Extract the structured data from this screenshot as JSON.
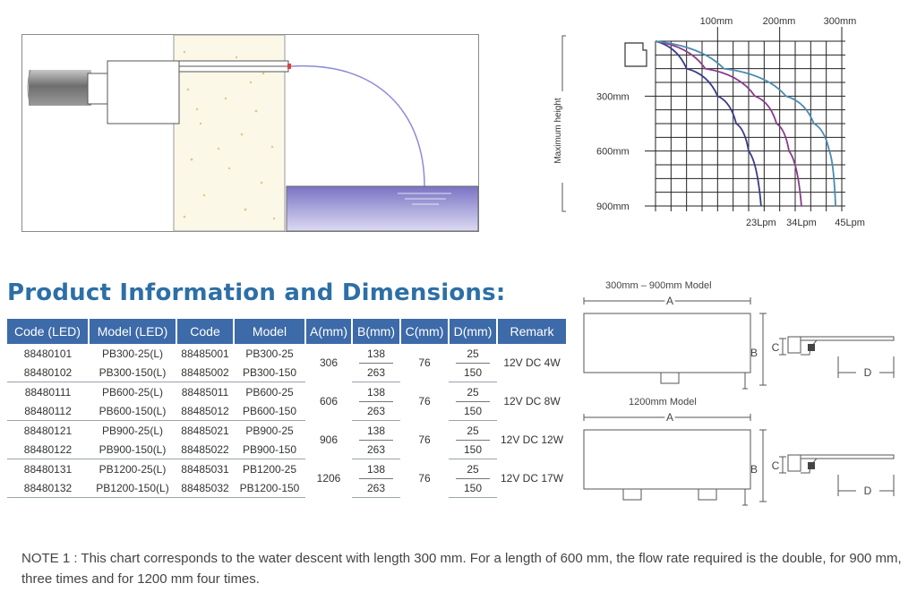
{
  "chart_data": {
    "type": "line",
    "title": "",
    "xlabel": "",
    "ylabel": "Maximum height",
    "x_ticks": [
      "100mm",
      "200mm",
      "300mm"
    ],
    "y_ticks": [
      "300mm",
      "600mm",
      "900mm"
    ],
    "series": [
      {
        "name": "23Lpm",
        "x": [
          0,
          50,
          100,
          130,
          150,
          170
        ],
        "y": [
          0,
          150,
          300,
          450,
          600,
          900
        ]
      },
      {
        "name": "34Lpm",
        "x": [
          0,
          80,
          160,
          195,
          215,
          235
        ],
        "y": [
          0,
          150,
          300,
          450,
          600,
          900
        ]
      },
      {
        "name": "45Lpm",
        "x": [
          0,
          110,
          210,
          255,
          280,
          290
        ],
        "y": [
          0,
          150,
          300,
          450,
          600,
          900
        ]
      }
    ],
    "colors": {
      "23Lpm": "#3a3a8a",
      "34Lpm": "#8a3a8a",
      "45Lpm": "#4a8ab0"
    },
    "xlim": [
      0,
      300
    ],
    "ylim": [
      0,
      900
    ],
    "grid": true
  },
  "dims": {
    "model_small": "300mm – 900mm Model",
    "model_large": "1200mm Model",
    "label_a": "A",
    "label_b": "B",
    "label_c": "C",
    "label_d": "D"
  },
  "section_title": "Product Information and Dimensions:",
  "table": {
    "headers": [
      "Code (LED)",
      "Model (LED)",
      "Code",
      "Model",
      "A(mm)",
      "B(mm)",
      "C(mm)",
      "D(mm)",
      "Remark"
    ],
    "groups": [
      {
        "rows": [
          [
            "88480101",
            "PB300-25(L)",
            "88485001",
            "PB300-25"
          ],
          [
            "88480102",
            "PB300-150(L)",
            "88485002",
            "PB300-150"
          ]
        ],
        "a": "306",
        "b": [
          "138",
          "263"
        ],
        "c": "76",
        "d": [
          "25",
          "150"
        ],
        "remark": "12V DC 4W"
      },
      {
        "rows": [
          [
            "88480111",
            "PB600-25(L)",
            "88485011",
            "PB600-25"
          ],
          [
            "88480112",
            "PB600-150(L)",
            "88485012",
            "PB600-150"
          ]
        ],
        "a": "606",
        "b": [
          "138",
          "263"
        ],
        "c": "76",
        "d": [
          "25",
          "150"
        ],
        "remark": "12V DC 8W"
      },
      {
        "rows": [
          [
            "88480121",
            "PB900-25(L)",
            "88485021",
            "PB900-25"
          ],
          [
            "88480122",
            "PB900-150(L)",
            "88485022",
            "PB900-150"
          ]
        ],
        "a": "906",
        "b": [
          "138",
          "263"
        ],
        "c": "76",
        "d": [
          "25",
          "150"
        ],
        "remark": "12V DC 12W"
      },
      {
        "rows": [
          [
            "88480131",
            "PB1200-25(L)",
            "88485031",
            "PB1200-25"
          ],
          [
            "88480132",
            "PB1200-150(L)",
            "88485032",
            "PB1200-150"
          ]
        ],
        "a": "1206",
        "b": [
          "138",
          "263"
        ],
        "c": "76",
        "d": [
          "25",
          "150"
        ],
        "remark": "12V DC 17W"
      }
    ]
  },
  "note": "NOTE 1 : This chart corresponds to the water descent with length 300 mm. For a length of 600 mm, the flow rate required is the double, for 900 mm, three times and for 1200 mm four times."
}
